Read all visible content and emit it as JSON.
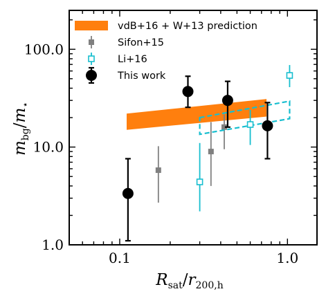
{
  "chart_data": {
    "type": "scatter",
    "title": "",
    "xlabel": "R_sat / r_200,h",
    "ylabel": "m_bg / m_star",
    "xscale": "log",
    "yscale": "log",
    "xlim": [
      0.05,
      1.5
    ],
    "ylim": [
      1.0,
      250.0
    ],
    "xticks": [
      {
        "value": 0.1,
        "label": "0.1"
      },
      {
        "value": 1.0,
        "label": "1.0"
      }
    ],
    "yticks": [
      {
        "value": 1.0,
        "label": "1.0"
      },
      {
        "value": 10.0,
        "label": "10.0"
      },
      {
        "value": 100.0,
        "label": "100.0"
      }
    ],
    "grid": false,
    "legend_position": "top-left",
    "band": {
      "name": "vdB+16 + W+13 prediction",
      "color": "#ff7f0e",
      "x": [
        0.11,
        0.75
      ],
      "lower": [
        15.0,
        20.5
      ],
      "upper": [
        22.0,
        31.0
      ]
    },
    "series": [
      {
        "name": "Sifon+15",
        "marker": "square-filled",
        "color": "#808080",
        "points": [
          {
            "x": 0.17,
            "y": 5.8,
            "ylow": 2.7,
            "yhigh": 10.2
          },
          {
            "x": 0.35,
            "y": 9.0,
            "ylow": 4.0,
            "yhigh": 18.0
          },
          {
            "x": 0.42,
            "y": 16.0,
            "ylow": 9.5,
            "yhigh": 21.5
          }
        ]
      },
      {
        "name": "Li+16",
        "marker": "square-open",
        "color": "#17becf",
        "points": [
          {
            "x": 0.3,
            "y": 4.4,
            "ylow": 2.2,
            "yhigh": 11.0
          },
          {
            "x": 0.6,
            "y": 17.0,
            "ylow": 10.5,
            "yhigh": 24.0
          },
          {
            "x": 1.03,
            "y": 54.0,
            "ylow": 41.0,
            "yhigh": 69.0
          }
        ],
        "band_outline": {
          "x": [
            0.3,
            1.03
          ],
          "lower": [
            13.5,
            19.5
          ],
          "upper": [
            20.0,
            29.5
          ]
        }
      },
      {
        "name": "This work",
        "marker": "circle",
        "color": "#000000",
        "points": [
          {
            "x": 0.112,
            "y": 3.35,
            "ylow": 1.1,
            "yhigh": 7.6
          },
          {
            "x": 0.255,
            "y": 37.0,
            "ylow": 25.5,
            "yhigh": 53.0
          },
          {
            "x": 0.44,
            "y": 30.0,
            "ylow": 16.0,
            "yhigh": 47.0
          },
          {
            "x": 0.76,
            "y": 16.5,
            "ylow": 7.6,
            "yhigh": 28.5
          }
        ]
      }
    ]
  }
}
